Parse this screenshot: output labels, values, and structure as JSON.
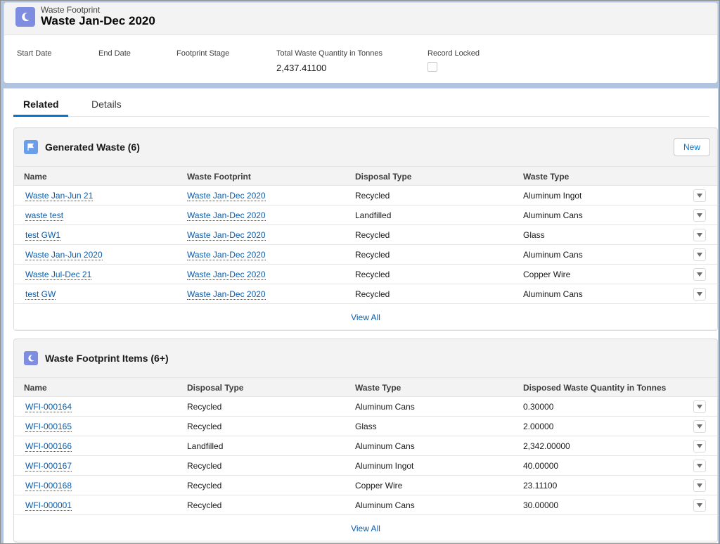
{
  "record": {
    "object_type": "Waste Footprint",
    "title": "Waste Jan-Dec 2020",
    "icon": "moon-icon",
    "icon_color": "#7f8de1",
    "fields": {
      "start_date_label": "Start Date",
      "end_date_label": "End Date",
      "stage_label": "Footprint Stage",
      "total_label": "Total Waste Quantity in Tonnes",
      "total_value": "2,437.41100",
      "locked_label": "Record Locked"
    }
  },
  "tabs": {
    "related": "Related",
    "details": "Details",
    "active": "Related"
  },
  "generated_waste": {
    "title": "Generated Waste (6)",
    "icon": "flag-icon",
    "icon_color": "#6b9ee8",
    "new_label": "New",
    "columns": [
      "Name",
      "Waste Footprint",
      "Disposal Type",
      "Waste Type"
    ],
    "rows": [
      [
        "Waste Jan-Jun 21",
        "Waste Jan-Dec 2020",
        "Recycled",
        "Aluminum Ingot"
      ],
      [
        "waste test",
        "Waste Jan-Dec 2020",
        "Landfilled",
        "Aluminum Cans"
      ],
      [
        "test GW1",
        "Waste Jan-Dec 2020",
        "Recycled",
        "Glass"
      ],
      [
        "Waste Jan-Jun 2020",
        "Waste Jan-Dec 2020",
        "Recycled",
        "Aluminum Cans"
      ],
      [
        "Waste Jul-Dec 21",
        "Waste Jan-Dec 2020",
        "Recycled",
        "Copper Wire"
      ],
      [
        "test GW",
        "Waste Jan-Dec 2020",
        "Recycled",
        "Aluminum Cans"
      ]
    ],
    "view_all": "View All"
  },
  "footprint_items": {
    "title": "Waste Footprint Items (6+)",
    "icon": "moon-icon",
    "icon_color": "#7f8de1",
    "columns": [
      "Name",
      "Disposal Type",
      "Waste Type",
      "Disposed Waste Quantity in Tonnes"
    ],
    "rows": [
      [
        "WFI-000164",
        "Recycled",
        "Aluminum Cans",
        "0.30000"
      ],
      [
        "WFI-000165",
        "Recycled",
        "Glass",
        "2.00000"
      ],
      [
        "WFI-000166",
        "Landfilled",
        "Aluminum Cans",
        "2,342.00000"
      ],
      [
        "WFI-000167",
        "Recycled",
        "Aluminum Ingot",
        "40.00000"
      ],
      [
        "WFI-000168",
        "Recycled",
        "Copper Wire",
        "23.11100"
      ],
      [
        "WFI-000001",
        "Recycled",
        "Aluminum Cans",
        "30.00000"
      ]
    ],
    "view_all": "View All"
  },
  "colors": {
    "link": "#0b5cab",
    "brand": "#0176d3",
    "banner": "#b0c4df"
  }
}
